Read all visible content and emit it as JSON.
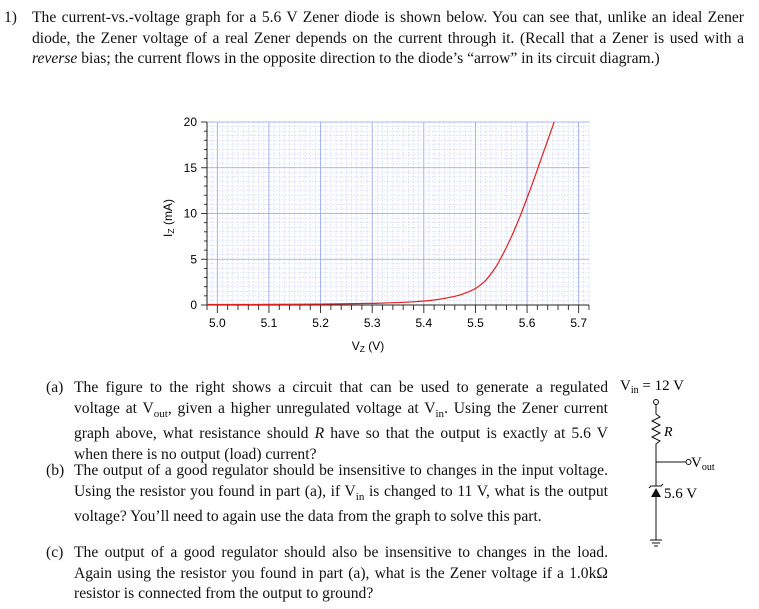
{
  "problem": {
    "number": "1)",
    "text_before_italic": "The current-vs.-voltage graph for a 5.6 V Zener diode is shown below. You can see that, unlike an ideal Zener diode, the Zener voltage of a real Zener depends on the current through it. (Recall that a Zener is used with a ",
    "italic": "reverse",
    "text_after_italic": " bias; the current flows in the opposite direction to the diode’s “arrow” in its circuit diagram.)"
  },
  "parts": {
    "a": {
      "label": "(a)",
      "t1": "The figure to the right shows a circuit that can be used to generate a regulated voltage at V",
      "s1": "out",
      "t2": ", given a higher unregulated voltage at V",
      "s2": "in",
      "t3": ". Using the Zener current graph above, what resistance should ",
      "r": "R",
      "t4": " have so that the output is exactly at 5.6 V when there is no output (load) current?"
    },
    "b": {
      "label": "(b)",
      "t1": "The output of a good regulator should be insensitive to changes in the input voltage. Using the resistor you found in part (a), if V",
      "s1": "in",
      "t2": " is changed to 11 V, what is the output voltage? You’ll need to again use the data from the graph to solve this part."
    },
    "c": {
      "label": "(c)",
      "t1": "The output of a good regulator should also be insensitive to changes in the load. Again using the resistor you found in part (a), what is the Zener voltage if a 1.0kΩ resistor is connected from the output to ground?"
    }
  },
  "circuit": {
    "vin_label": "V",
    "vin_sub": "in",
    "vin_value": " = 12 V",
    "r_label": "R",
    "vout_label": "V",
    "vout_sub": "out",
    "zener_label": "5.6 V"
  },
  "chart_data": {
    "type": "line",
    "xlabel": "V",
    "xlabel_sub": "Z",
    "xlabel_unit": " (V)",
    "ylabel": "I",
    "ylabel_sub": "Z",
    "ylabel_unit": " (mA)",
    "xlim": [
      4.98,
      5.72
    ],
    "ylim": [
      0,
      20
    ],
    "x_ticks": [
      "5.0",
      "5.1",
      "5.2",
      "5.3",
      "5.4",
      "5.5",
      "5.6",
      "5.7"
    ],
    "y_ticks": [
      "0",
      "5",
      "10",
      "15",
      "20"
    ],
    "grid": true,
    "series_color": "#e0201b",
    "x": [
      4.98,
      5.1,
      5.2,
      5.3,
      5.38,
      5.42,
      5.46,
      5.48,
      5.5,
      5.51,
      5.52,
      5.53,
      5.54,
      5.55,
      5.56,
      5.57,
      5.58,
      5.59,
      5.6,
      5.61,
      5.62,
      5.63,
      5.64,
      5.65,
      5.66,
      5.67
    ],
    "y": [
      0.05,
      0.07,
      0.1,
      0.18,
      0.35,
      0.55,
      0.95,
      1.3,
      1.8,
      2.2,
      2.7,
      3.4,
      4.2,
      5.2,
      6.3,
      7.5,
      8.8,
      10.2,
      11.7,
      13.2,
      14.8,
      16.4,
      18.0,
      19.6,
      21.2,
      22.8
    ]
  }
}
